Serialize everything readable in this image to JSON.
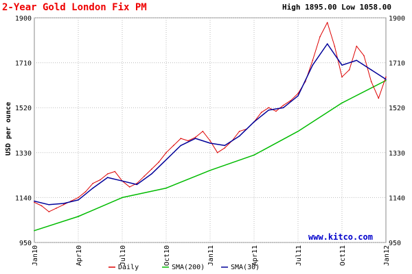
{
  "chart_data": {
    "type": "line",
    "title": "2-Year Gold London Fix PM",
    "range_text": "High 1895.00 Low 1058.00",
    "ylabel": "USD per ounce",
    "ylim": [
      950,
      1900
    ],
    "y_ticks": [
      950,
      1140,
      1330,
      1520,
      1710,
      1900
    ],
    "y_tick_labels": [
      "950",
      "1140",
      "1330",
      "1520",
      "1710",
      "1900"
    ],
    "x_ticks": [
      "Jan10",
      "Apr10",
      "Jul10",
      "Oct10",
      "Jan11",
      "Apr11",
      "Jul11",
      "Oct11",
      "Jan12"
    ],
    "grid": true,
    "legend": "bottom",
    "watermark": "www.kitco.com",
    "colors": {
      "daily": "#dd0000",
      "sma200": "#00bb00",
      "sma30": "#000099",
      "grid": "#bbbbbb",
      "frame": "#888888"
    },
    "series": [
      {
        "name": "Daily",
        "color": "#dd0000",
        "x": [
          "Jan10",
          "Jan10",
          "Feb10",
          "Feb10",
          "Mar10",
          "Mar10",
          "Apr10",
          "Apr10",
          "May10",
          "May10",
          "Jun10",
          "Jun10",
          "Jul10",
          "Jul10",
          "Aug10",
          "Aug10",
          "Sep10",
          "Sep10",
          "Oct10",
          "Oct10",
          "Nov10",
          "Nov10",
          "Dec10",
          "Dec10",
          "Jan11",
          "Jan11",
          "Feb11",
          "Feb11",
          "Mar11",
          "Mar11",
          "Apr11",
          "Apr11",
          "May11",
          "May11",
          "Jun11",
          "Jun11",
          "Jul11",
          "Jul11",
          "Aug11",
          "Aug11",
          "Sep11",
          "Sep11",
          "Oct11",
          "Oct11",
          "Nov11",
          "Nov11",
          "Dec11",
          "Dec11",
          "Jan12"
        ],
        "values": [
          1120,
          1105,
          1080,
          1095,
          1110,
          1125,
          1140,
          1165,
          1200,
          1215,
          1240,
          1250,
          1210,
          1185,
          1200,
          1230,
          1260,
          1290,
          1330,
          1360,
          1390,
          1380,
          1395,
          1420,
          1380,
          1330,
          1350,
          1380,
          1420,
          1430,
          1460,
          1500,
          1520,
          1505,
          1530,
          1550,
          1580,
          1630,
          1720,
          1820,
          1880,
          1780,
          1650,
          1680,
          1780,
          1740,
          1630,
          1560,
          1650
        ]
      },
      {
        "name": "SMA(200)",
        "color": "#00bb00",
        "x": [
          "Jan10",
          "Apr10",
          "Jul10",
          "Oct10",
          "Jan11",
          "Apr11",
          "Jul11",
          "Oct11",
          "Jan12"
        ],
        "values": [
          1000,
          1060,
          1140,
          1180,
          1255,
          1320,
          1420,
          1540,
          1635
        ]
      },
      {
        "name": "SMA(30)",
        "color": "#000099",
        "x": [
          "Jan10",
          "Feb10",
          "Mar10",
          "Apr10",
          "May10",
          "Jun10",
          "Jul10",
          "Aug10",
          "Sep10",
          "Oct10",
          "Nov10",
          "Dec10",
          "Jan11",
          "Feb11",
          "Mar11",
          "Apr11",
          "May11",
          "Jun11",
          "Jul11",
          "Aug11",
          "Sep11",
          "Oct11",
          "Nov11",
          "Dec11",
          "Jan12"
        ],
        "values": [
          1125,
          1110,
          1115,
          1130,
          1180,
          1225,
          1210,
          1195,
          1240,
          1300,
          1360,
          1390,
          1370,
          1360,
          1400,
          1460,
          1510,
          1520,
          1570,
          1700,
          1790,
          1700,
          1720,
          1680,
          1640
        ]
      }
    ]
  }
}
